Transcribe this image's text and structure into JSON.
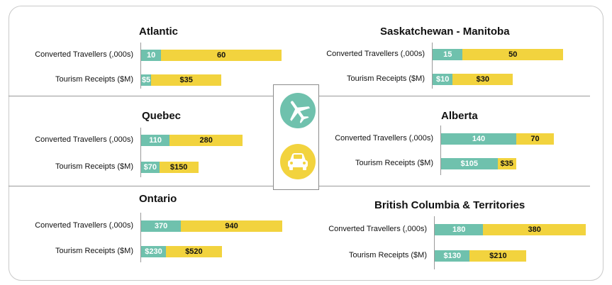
{
  "colors": {
    "converted": "#6fc1ad",
    "other": "#f2d33e",
    "label_on_teal": "#ffffff",
    "label_on_yellow": "#111111"
  },
  "icons": {
    "top": "airplane-icon",
    "bottom": "car-icon"
  },
  "chart_data": {
    "type": "bar",
    "stacked": true,
    "orientation": "horizontal",
    "grid": false,
    "regions": [
      {
        "name": "Atlantic",
        "rows": [
          {
            "label": "Converted Travellers (,000s)",
            "segments": [
              {
                "value": 10,
                "text": "10"
              },
              {
                "value": 60,
                "text": "60"
              }
            ]
          },
          {
            "label": "Tourism Receipts ($M)",
            "segments": [
              {
                "value": 5,
                "text": "$5"
              },
              {
                "value": 35,
                "text": "$35"
              }
            ]
          }
        ]
      },
      {
        "name": "Saskatchewan - Manitoba",
        "rows": [
          {
            "label": "Converted Travellers (,000s)",
            "segments": [
              {
                "value": 15,
                "text": "15"
              },
              {
                "value": 50,
                "text": "50"
              }
            ]
          },
          {
            "label": "Tourism Receipts ($M)",
            "segments": [
              {
                "value": 10,
                "text": "$10"
              },
              {
                "value": 30,
                "text": "$30"
              }
            ]
          }
        ]
      },
      {
        "name": "Quebec",
        "rows": [
          {
            "label": "Converted Travellers (,000s)",
            "segments": [
              {
                "value": 110,
                "text": "110"
              },
              {
                "value": 280,
                "text": "280"
              }
            ]
          },
          {
            "label": "Tourism Receipts ($M)",
            "segments": [
              {
                "value": 70,
                "text": "$70"
              },
              {
                "value": 150,
                "text": "$150"
              }
            ]
          }
        ]
      },
      {
        "name": "Alberta",
        "rows": [
          {
            "label": "Converted Travellers (,000s)",
            "segments": [
              {
                "value": 140,
                "text": "140"
              },
              {
                "value": 70,
                "text": "70"
              }
            ]
          },
          {
            "label": "Tourism Receipts ($M)",
            "segments": [
              {
                "value": 105,
                "text": "$105"
              },
              {
                "value": 35,
                "text": "$35"
              }
            ]
          }
        ]
      },
      {
        "name": "Ontario",
        "rows": [
          {
            "label": "Converted Travellers (,000s)",
            "segments": [
              {
                "value": 370,
                "text": "370"
              },
              {
                "value": 940,
                "text": "940"
              }
            ]
          },
          {
            "label": "Tourism Receipts ($M)",
            "segments": [
              {
                "value": 230,
                "text": "$230"
              },
              {
                "value": 520,
                "text": "$520"
              }
            ]
          }
        ]
      },
      {
        "name": "British Columbia & Territories",
        "rows": [
          {
            "label": "Converted Travellers (,000s)",
            "segments": [
              {
                "value": 180,
                "text": "180"
              },
              {
                "value": 380,
                "text": "380"
              }
            ]
          },
          {
            "label": "Tourism Receipts ($M)",
            "segments": [
              {
                "value": 130,
                "text": "$130"
              },
              {
                "value": 210,
                "text": "$210"
              }
            ]
          }
        ]
      }
    ]
  }
}
